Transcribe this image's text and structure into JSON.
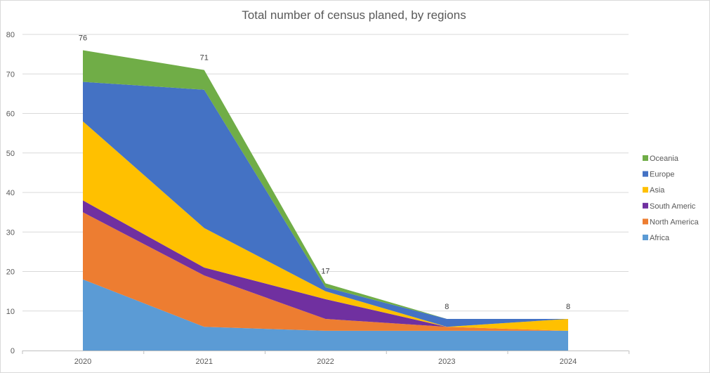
{
  "chart_data": {
    "type": "area",
    "stacked": true,
    "title": "Total number of census planed, by regions",
    "xlabel": "",
    "ylabel": "",
    "categories": [
      "2020",
      "2021",
      "2022",
      "2023",
      "2024"
    ],
    "ylim": [
      0,
      80
    ],
    "yticks": [
      0,
      10,
      20,
      30,
      40,
      50,
      60,
      70,
      80
    ],
    "grid": true,
    "legend_position": "right",
    "series": [
      {
        "name": "Africa",
        "values": [
          18,
          6,
          5,
          5,
          5
        ],
        "color": "#5B9BD5"
      },
      {
        "name": "North America",
        "values": [
          17,
          13,
          3,
          1,
          0
        ],
        "color": "#ED7D31"
      },
      {
        "name": "South Americ",
        "values": [
          3,
          2,
          5,
          0,
          0
        ],
        "color": "#7030A0"
      },
      {
        "name": "Asia",
        "values": [
          20,
          10,
          2,
          0,
          3
        ],
        "color": "#FFC000"
      },
      {
        "name": "Europe",
        "values": [
          10,
          35,
          1,
          2,
          0
        ],
        "color": "#4472C4"
      },
      {
        "name": "Oceania",
        "values": [
          8,
          5,
          1,
          0,
          0
        ],
        "color": "#70AD47"
      }
    ],
    "total_labels": [
      "76",
      "71",
      "17",
      "8",
      "8"
    ]
  }
}
